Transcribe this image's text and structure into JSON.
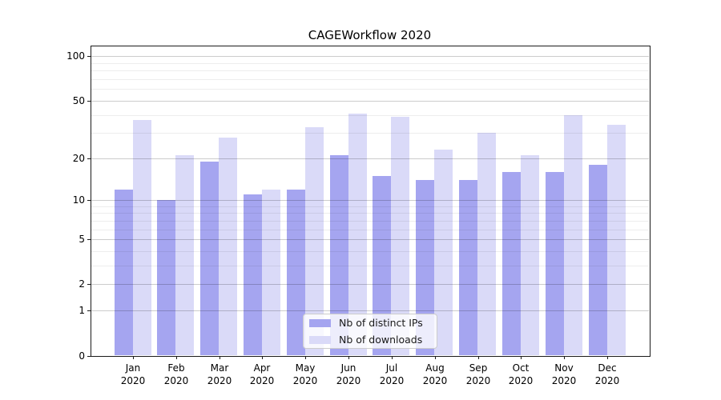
{
  "figure": {
    "background_color": "#ffffff"
  },
  "chart_data": {
    "type": "bar",
    "title": "CAGEWorkflow 2020",
    "xlabel": "",
    "ylabel": "",
    "categories": [
      "Jan\n2020",
      "Feb\n2020",
      "Mar\n2020",
      "Apr\n2020",
      "May\n2020",
      "Jun\n2020",
      "Jul\n2020",
      "Aug\n2020",
      "Sep\n2020",
      "Oct\n2020",
      "Nov\n2020",
      "Dec\n2020"
    ],
    "series": [
      {
        "name": "Nb of distinct IPs",
        "color": "#a5a5f0",
        "values": [
          12,
          10,
          19,
          11,
          12,
          21,
          15,
          14,
          14,
          16,
          16,
          18
        ]
      },
      {
        "name": "Nb of downloads",
        "color": "#dadaf8",
        "values": [
          37,
          21,
          28,
          12,
          33,
          41,
          39,
          23,
          30,
          21,
          40,
          34
        ]
      }
    ],
    "yscale": "log1p",
    "ylim": [
      0,
      117
    ],
    "ytick_values": [
      0,
      1,
      2,
      5,
      10,
      20,
      50,
      100
    ],
    "ytick_labels": [
      "0",
      "1",
      "2",
      "5",
      "10",
      "20",
      "50",
      "100"
    ],
    "minor_grid_values": [
      3,
      4,
      6,
      7,
      8,
      9,
      30,
      40,
      60,
      70,
      80,
      90
    ],
    "grid": true,
    "legend_position": "lower center"
  }
}
